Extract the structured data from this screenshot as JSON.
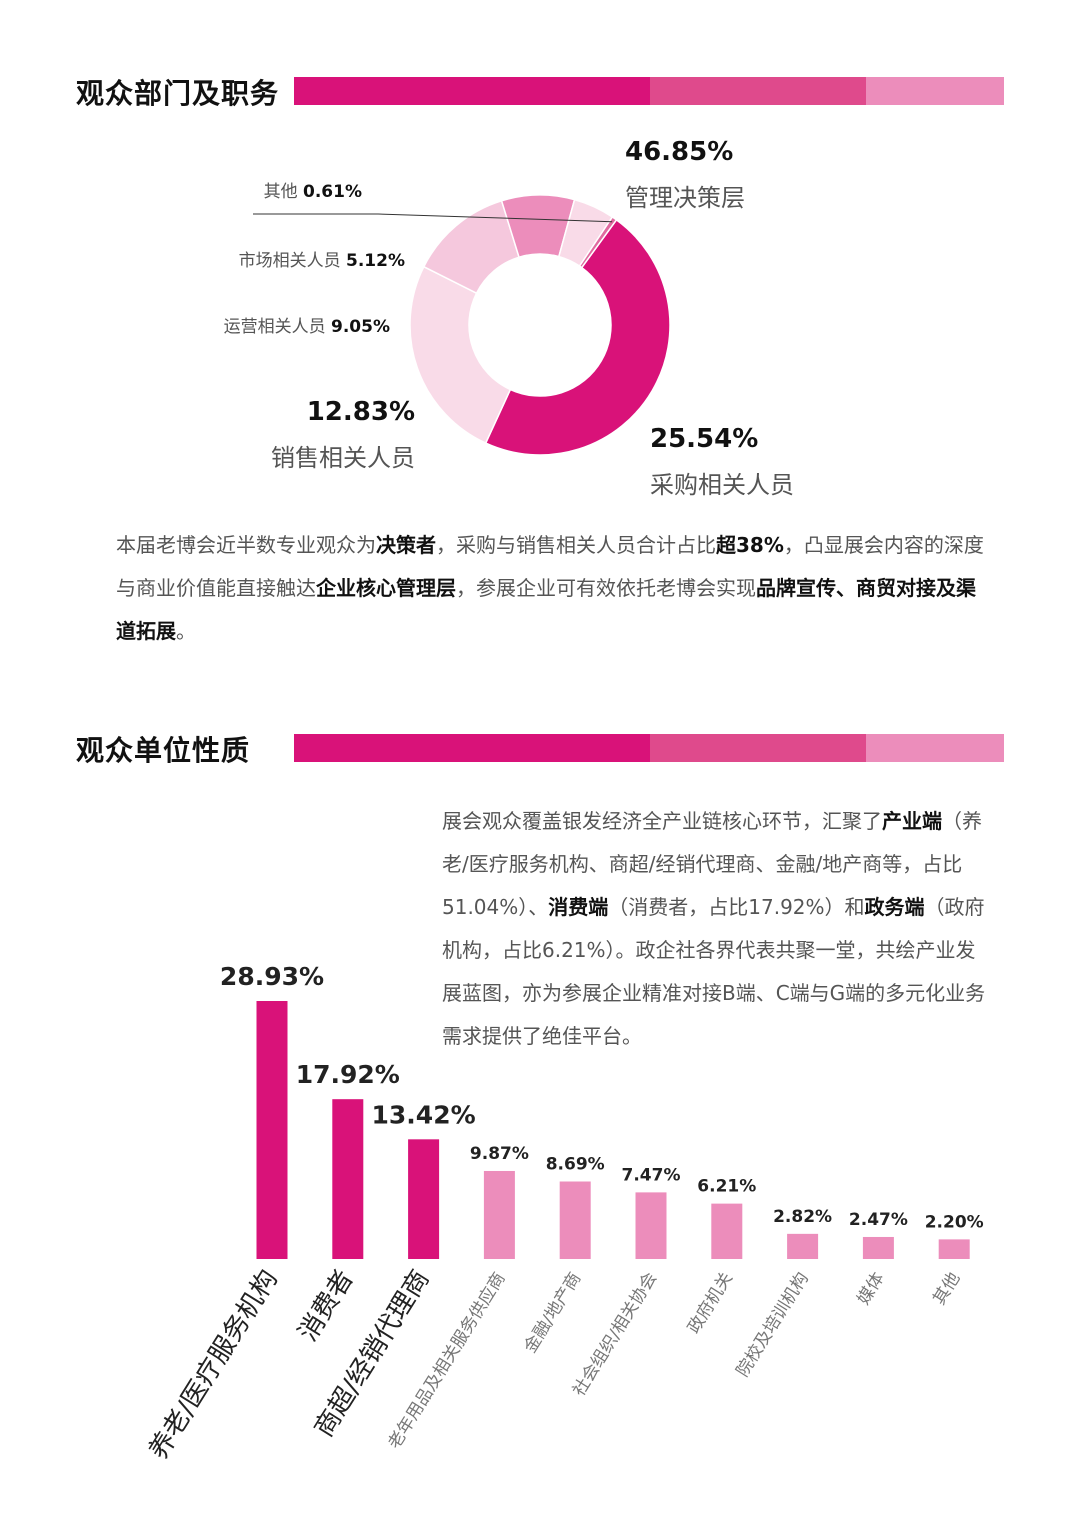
{
  "colors": {
    "magenta": "#d91279",
    "mid_pink": "#df4a8c",
    "light_pink": "#ec8dbb",
    "pale_pink": "#f5c8dd",
    "palest_pink": "#f9dbe8",
    "dark_text": "#111111",
    "body_text": "#555555"
  },
  "section1": {
    "title": "观众部门及职务",
    "paragraph": [
      {
        "text": "本届老博会近半数专业观众为",
        "bold": false
      },
      {
        "text": "决策者",
        "bold": true
      },
      {
        "text": "，采购与销售相关人员合计占比",
        "bold": false
      },
      {
        "text": "超38%",
        "bold": true
      },
      {
        "text": "，凸显展会内容的深度与商业价值能直接触达",
        "bold": false
      },
      {
        "text": "企业核心管理层",
        "bold": true
      },
      {
        "text": "，参展企业可有效依托老博会实现",
        "bold": false
      },
      {
        "text": "品牌宣传、商贸对接及渠道拓展",
        "bold": true
      },
      {
        "text": "。",
        "bold": false
      }
    ]
  },
  "section2": {
    "title": "观众单位性质",
    "paragraph": [
      {
        "text": "展会观众覆盖银发经济全产业链核心环节，汇聚了",
        "bold": false
      },
      {
        "text": "产业端",
        "bold": true
      },
      {
        "text": "（养老/医疗服务机构、商超/经销代理商、金融/地产商等，占比51.04%）、",
        "bold": false
      },
      {
        "text": "消费端",
        "bold": true
      },
      {
        "text": "（消费者，占比17.92%）和",
        "bold": false
      },
      {
        "text": "政务端",
        "bold": true
      },
      {
        "text": "（政府机构，占比6.21%）。政企社各界代表共聚一堂，共绘产业发展蓝图，亦为参展企业精准对接B端、C端与G端的多元化业务需求提供了绝佳平台。",
        "bold": false
      }
    ]
  },
  "chart_data": [
    {
      "type": "pie",
      "variant": "donut",
      "slices": [
        {
          "label": "管理决策层",
          "value_label": "46.85%",
          "value": 46.85,
          "color": "#d91279"
        },
        {
          "label": "采购相关人员",
          "value_label": "25.54%",
          "value": 25.54,
          "color": "#f9dbe8"
        },
        {
          "label": "销售相关人员",
          "value_label": "12.83%",
          "value": 12.83,
          "color": "#f5c8dd"
        },
        {
          "label": "运营相关人员",
          "value_label": "9.05%",
          "value": 9.05,
          "color": "#ec8dbb"
        },
        {
          "label": "市场相关人员",
          "value_label": "5.12%",
          "value": 5.12,
          "color": "#f9dbe8"
        },
        {
          "label": "其他",
          "value_label": "0.61%",
          "value": 0.61,
          "color": "#e06aa0"
        }
      ]
    },
    {
      "type": "bar",
      "categories": [
        "养老/医疗服务机构",
        "消费者",
        "商超/经销代理商",
        "老年用品及相关服务供应商",
        "金融/地产商",
        "社会组织/相关协会",
        "政府机关",
        "院校及培训机构",
        "媒体",
        "其他"
      ],
      "values": [
        28.93,
        17.92,
        13.42,
        9.87,
        8.69,
        7.47,
        6.21,
        2.82,
        2.47,
        2.2
      ],
      "value_labels": [
        "28.93%",
        "17.92%",
        "13.42%",
        "9.87%",
        "8.69%",
        "7.47%",
        "6.21%",
        "2.82%",
        "2.47%",
        "2.20%"
      ],
      "highlight_count": 3,
      "highlight_color": "#d91279",
      "base_color": "#ec8dbb"
    }
  ]
}
